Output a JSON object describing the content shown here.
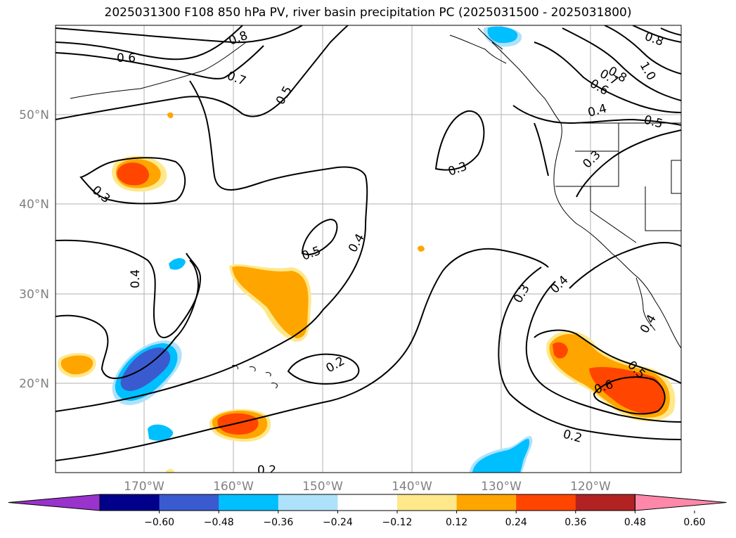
{
  "title": "2025031300 F108 850 hPa PV, river basin precipitation PC (2025031500 - 2025031800)",
  "map": {
    "lat_labels": [
      "50°N",
      "40°N",
      "30°N",
      "20°N"
    ],
    "lon_labels": [
      "170°W",
      "160°W",
      "150°W",
      "140°W",
      "130°W",
      "120°W"
    ],
    "contour_labels": [
      "0.6",
      "0.8",
      "0.7",
      "0.5",
      "0.3",
      "0.3",
      "0.4",
      "0.5",
      "0.4",
      "0.2",
      "0.3",
      "0.4",
      "0.2",
      "0.5",
      "0.6",
      "0.4",
      "0.3",
      "0.4",
      "0.5",
      "0.6",
      "0.7",
      "0.8",
      "1.0",
      "0.8",
      "0.2"
    ]
  },
  "colorbar": {
    "ticks": [
      "−0.60",
      "−0.48",
      "−0.36",
      "−0.24",
      "−0.12",
      "0.12",
      "0.24",
      "0.36",
      "0.48",
      "0.60"
    ],
    "colors": [
      "#9933cc",
      "#00008b",
      "#3a5bd0",
      "#00bfff",
      "#aee2fb",
      "#ffffff",
      "#ffe88a",
      "#ffa500",
      "#ff4500",
      "#b22222",
      "#ff88aa"
    ]
  }
}
